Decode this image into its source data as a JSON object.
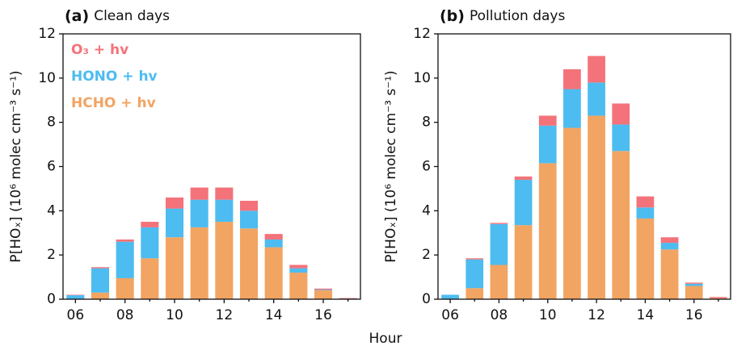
{
  "x_label": "Hour",
  "chart_data": [
    {
      "type": "bar",
      "stacked": true,
      "label": "(a)",
      "title": "Clean days",
      "y_label": "P[HOₓ] (10⁶ molec cm⁻³ s⁻¹)",
      "categories": [
        "06",
        null,
        "08",
        null,
        "10",
        null,
        "12",
        null,
        "14",
        null,
        "16",
        null
      ],
      "series": [
        {
          "name": "O₃ + hv",
          "color": "#f4727a",
          "values": [
            0.02,
            0.05,
            0.1,
            0.25,
            0.5,
            0.55,
            0.55,
            0.45,
            0.25,
            0.15,
            0.05,
            0.03
          ]
        },
        {
          "name": "HONO + hv",
          "color": "#4dbcf0",
          "values": [
            0.18,
            1.1,
            1.65,
            1.4,
            1.3,
            1.25,
            1.0,
            0.8,
            0.35,
            0.2,
            0.03,
            0
          ]
        },
        {
          "name": "HCHO + hv",
          "color": "#f2a462",
          "values": [
            0,
            0.3,
            0.95,
            1.85,
            2.8,
            3.25,
            3.5,
            3.2,
            2.35,
            1.2,
            0.4,
            0.02
          ]
        }
      ],
      "ylim": [
        0,
        12
      ],
      "yticks": [
        0,
        2,
        4,
        6,
        8,
        10,
        12
      ],
      "legend": "upper left"
    },
    {
      "type": "bar",
      "stacked": true,
      "label": "(b)",
      "title": "Pollution days",
      "y_label": "P[HOₓ] (10⁶ molec cm⁻³ s⁻¹)",
      "categories": [
        "06",
        null,
        "08",
        null,
        "10",
        null,
        "12",
        null,
        "14",
        null,
        "16",
        null
      ],
      "series": [
        {
          "name": "O₃ + hv",
          "color": "#f4727a",
          "values": [
            0,
            0.05,
            0.05,
            0.15,
            0.45,
            0.9,
            1.2,
            0.95,
            0.5,
            0.25,
            0.05,
            0.05
          ]
        },
        {
          "name": "HONO + hv",
          "color": "#4dbcf0",
          "values": [
            0.2,
            1.3,
            1.85,
            2.05,
            1.7,
            1.75,
            1.5,
            1.2,
            0.5,
            0.3,
            0.1,
            0
          ]
        },
        {
          "name": "HCHO + hv",
          "color": "#f2a462",
          "values": [
            0,
            0.5,
            1.55,
            3.35,
            6.15,
            7.75,
            8.3,
            6.7,
            3.65,
            2.25,
            0.6,
            0.05
          ]
        }
      ],
      "ylim": [
        0,
        12
      ],
      "yticks": [
        0,
        2,
        4,
        6,
        8,
        10,
        12
      ],
      "legend": null
    }
  ]
}
